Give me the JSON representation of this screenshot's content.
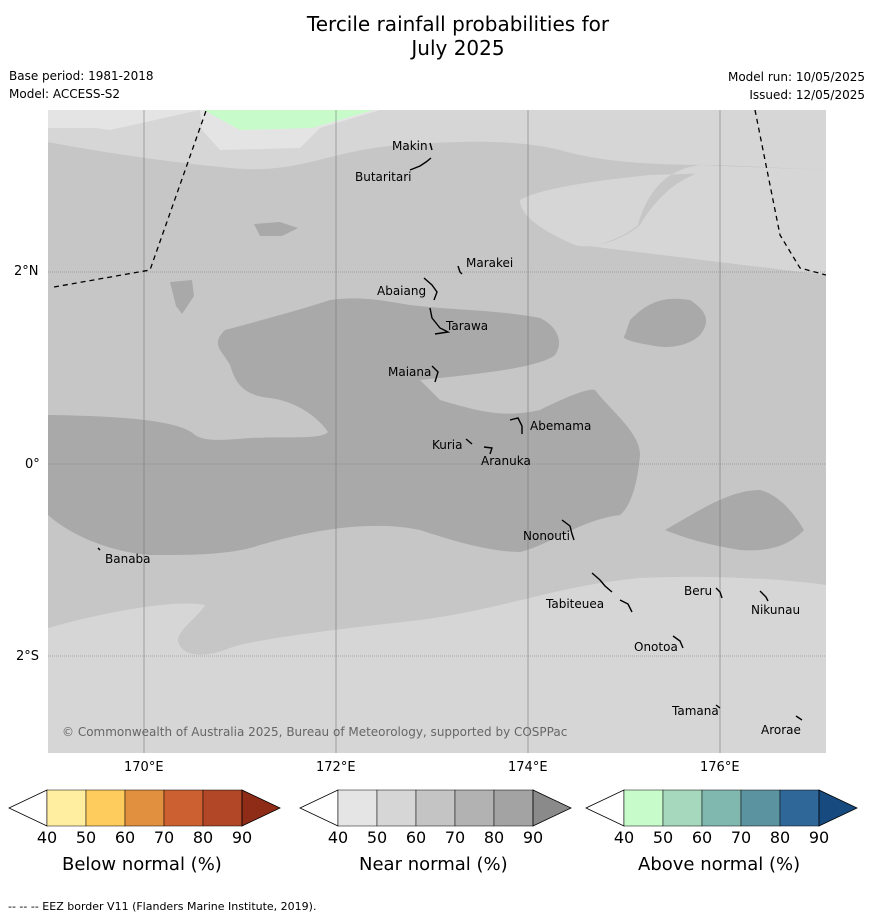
{
  "title_line1": "Tercile rainfall probabilities for",
  "title_line2": "July 2025",
  "base_period": "Base period: 1981-2018",
  "model": "Model: ACCESS-S2",
  "model_run": "Model run: 10/05/2025",
  "issued": "Issued: 12/05/2025",
  "copyright": "© Commonwealth of Australia 2025, Bureau of Meteorology, supported by COSPPac",
  "lat_labels": [
    "2°N",
    "0°",
    "2°S"
  ],
  "lon_labels": [
    "170°E",
    "172°E",
    "174°E",
    "176°E"
  ],
  "places": [
    "Makin",
    "Butaritari",
    "Marakei",
    "Abaiang",
    "Tarawa",
    "Maiana",
    "Abemama",
    "Kuria",
    "Aranuka",
    "Nonouti",
    "Banaba",
    "Beru",
    "Nikunau",
    "Tabiteuea",
    "Onotoa",
    "Tamana",
    "Arorae"
  ],
  "colorbars": [
    {
      "label": "Below normal (%)",
      "ticks": [
        "40",
        "50",
        "60",
        "70",
        "80",
        "90"
      ],
      "colors": [
        "#ffeda0",
        "#fecc5c",
        "#e0903f",
        "#cc6031",
        "#b14726",
        "#8e2c17"
      ]
    },
    {
      "label": "Near normal (%)",
      "ticks": [
        "40",
        "50",
        "60",
        "70",
        "80",
        "90"
      ],
      "colors": [
        "#e5e5e5",
        "#d6d6d6",
        "#c4c4c4",
        "#b2b2b2",
        "#a3a3a3",
        "#8a8a8a"
      ]
    },
    {
      "label": "Above normal (%)",
      "ticks": [
        "40",
        "50",
        "60",
        "70",
        "80",
        "90"
      ],
      "colors": [
        "#c7fcca",
        "#a6d8bd",
        "#80b8b0",
        "#5c93a0",
        "#306799",
        "#174b80"
      ]
    }
  ],
  "footer": "--  --  -- EEZ border V11 (Flanders Marine Institute, 2019)."
}
